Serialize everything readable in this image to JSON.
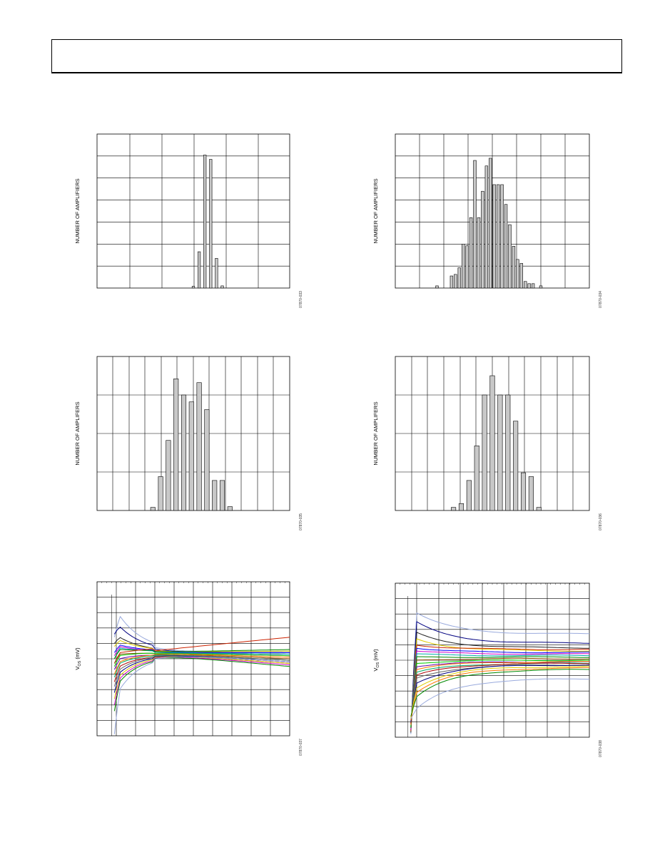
{
  "charts": [
    {
      "id": "hist1",
      "ylabel": "NUMBER OF AMPLIFIERS",
      "code": "07870-033",
      "chart_data": {
        "type": "bar",
        "xlabel": "",
        "ylabel": "NUMBER OF AMPLIFIERS",
        "xlim": [
          0,
          100
        ],
        "ylim": [
          0,
          7
        ],
        "grid": true,
        "bins": [
          {
            "x": 50,
            "h": 0.08
          },
          {
            "x": 53,
            "h": 1.65
          },
          {
            "x": 56,
            "h": 6.05
          },
          {
            "x": 59,
            "h": 5.85
          },
          {
            "x": 62,
            "h": 1.35
          },
          {
            "x": 65,
            "h": 0.1
          }
        ]
      }
    },
    {
      "id": "hist2",
      "ylabel": "NUMBER OF AMPLIFIERS",
      "code": "07870-034",
      "chart_data": {
        "type": "bar",
        "xlabel": "",
        "ylabel": "NUMBER OF AMPLIFIERS",
        "xlim": [
          0,
          100
        ],
        "ylim": [
          0,
          7
        ],
        "grid": true,
        "bins": [
          {
            "x": 21.5,
            "h": 0.1
          },
          {
            "x": 29,
            "h": 0.55
          },
          {
            "x": 31,
            "h": 0.62
          },
          {
            "x": 33,
            "h": 0.92
          },
          {
            "x": 35,
            "h": 2.0
          },
          {
            "x": 37,
            "h": 1.92
          },
          {
            "x": 39,
            "h": 3.2
          },
          {
            "x": 41,
            "h": 5.8
          },
          {
            "x": 43,
            "h": 3.2
          },
          {
            "x": 45,
            "h": 4.4
          },
          {
            "x": 47,
            "h": 5.55
          },
          {
            "x": 49,
            "h": 5.9
          },
          {
            "x": 51,
            "h": 4.7
          },
          {
            "x": 53,
            "h": 4.7
          },
          {
            "x": 55,
            "h": 4.7
          },
          {
            "x": 57,
            "h": 3.8
          },
          {
            "x": 59,
            "h": 2.88
          },
          {
            "x": 61,
            "h": 1.9
          },
          {
            "x": 63,
            "h": 1.3
          },
          {
            "x": 65,
            "h": 1.12
          },
          {
            "x": 67,
            "h": 0.3
          },
          {
            "x": 69,
            "h": 0.2
          },
          {
            "x": 71,
            "h": 0.2
          },
          {
            "x": 75,
            "h": 0.1
          }
        ]
      }
    },
    {
      "id": "hist3",
      "ylabel": "NUMBER OF AMPLIFERS",
      "code": "07870-035",
      "chart_data": {
        "type": "bar",
        "xlabel": "",
        "ylabel": "NUMBER OF AMPLIFERS",
        "xlim": [
          0,
          100
        ],
        "ylim": [
          0,
          4
        ],
        "grid": true,
        "bins": [
          {
            "x": 29,
            "h": 0.08
          },
          {
            "x": 33,
            "h": 0.88
          },
          {
            "x": 37,
            "h": 1.82
          },
          {
            "x": 41,
            "h": 3.42
          },
          {
            "x": 45,
            "h": 3.0
          },
          {
            "x": 49,
            "h": 2.82
          },
          {
            "x": 53,
            "h": 3.32
          },
          {
            "x": 57,
            "h": 2.62
          },
          {
            "x": 61,
            "h": 0.78
          },
          {
            "x": 65,
            "h": 0.78
          },
          {
            "x": 69,
            "h": 0.1
          }
        ]
      }
    },
    {
      "id": "hist4",
      "ylabel": "NUMBER OF AMPLIFERS",
      "code": "07870-036",
      "chart_data": {
        "type": "bar",
        "xlabel": "",
        "ylabel": "NUMBER OF AMPLIFERS",
        "xlim": [
          0,
          100
        ],
        "ylim": [
          0,
          4
        ],
        "grid": true,
        "bins": [
          {
            "x": 30,
            "h": 0.08
          },
          {
            "x": 34,
            "h": 0.18
          },
          {
            "x": 38,
            "h": 0.78
          },
          {
            "x": 42,
            "h": 1.68
          },
          {
            "x": 46,
            "h": 3.0
          },
          {
            "x": 50,
            "h": 3.5
          },
          {
            "x": 54,
            "h": 3.0
          },
          {
            "x": 58,
            "h": 3.0
          },
          {
            "x": 62,
            "h": 2.32
          },
          {
            "x": 66,
            "h": 0.98
          },
          {
            "x": 70,
            "h": 0.88
          },
          {
            "x": 74,
            "h": 0.08
          }
        ]
      }
    },
    {
      "id": "line1",
      "ylabel": "V",
      "ylabel_sub": "OS",
      "ylabel_unit": " (mV)",
      "code": "07870-037",
      "chart_data": {
        "type": "line",
        "xlabel": "",
        "ylabel": "VOS (mV)",
        "xlim": [
          0,
          100
        ],
        "ylim": [
          -5,
          5
        ],
        "grid": true,
        "x_start": 9,
        "settle": 61,
        "palette": [
          "#99aadd",
          "#000080",
          "#cc2200",
          "#008800",
          "#00aaaa",
          "#cc00cc",
          "#ddcc00",
          "#222222",
          "#ff7700",
          "#00cc00",
          "#6600aa",
          "#0000ff",
          "#884400",
          "#aa0000",
          "#666666",
          "#00aa66"
        ],
        "series": [
          {
            "c": "#99aadd",
            "start": 1.4,
            "peak": 2.8,
            "end": 0.5
          },
          {
            "c": "#000080",
            "start": 1.6,
            "peak": 2.1,
            "end": 0.4
          },
          {
            "c": "#222222",
            "start": 1.0,
            "peak": 1.4,
            "end": 0.3
          },
          {
            "c": "#ddcc00",
            "start": 0.8,
            "peak": 1.2,
            "end": 0.5
          },
          {
            "c": "#0000ff",
            "start": 0.4,
            "peak": 0.9,
            "end": 0.4
          },
          {
            "c": "#cc00cc",
            "start": 0.2,
            "peak": 0.8,
            "end": 0.2
          },
          {
            "c": "#00aaaa",
            "start": 0.0,
            "peak": 0.7,
            "end": 0.3
          },
          {
            "c": "#008800",
            "start": 0.0,
            "peak": 0.6,
            "end": 0.6
          },
          {
            "c": "#cc2200",
            "start": -0.3,
            "peak": 0.4,
            "end": 1.4
          },
          {
            "c": "#884400",
            "start": -0.3,
            "peak": 0.3,
            "end": 0.0
          },
          {
            "c": "#00cc00",
            "start": -0.5,
            "peak": 0.2,
            "end": 0.2
          },
          {
            "c": "#6600aa",
            "start": -0.7,
            "peak": 0.0,
            "end": -0.2
          },
          {
            "c": "#ff7700",
            "start": -1.0,
            "peak": -0.2,
            "end": 0.1
          },
          {
            "c": "#00aa66",
            "start": -1.2,
            "peak": -0.3,
            "end": -0.1
          },
          {
            "c": "#aa0000",
            "start": -1.5,
            "peak": -0.5,
            "end": -0.3
          },
          {
            "c": "#666666",
            "start": -1.8,
            "peak": -0.7,
            "end": -0.1
          },
          {
            "c": "#000080",
            "start": -2.2,
            "peak": -0.9,
            "end": -0.2
          },
          {
            "c": "#ddcc00",
            "start": -2.6,
            "peak": -1.1,
            "end": -0.3
          },
          {
            "c": "#cc00cc",
            "start": -3.0,
            "peak": -1.3,
            "end": -0.4
          },
          {
            "c": "#008800",
            "start": -3.4,
            "peak": -1.5,
            "end": -0.5
          },
          {
            "c": "#99aadd",
            "start": -4.9,
            "peak": -2.0,
            "end": -0.2
          }
        ]
      }
    },
    {
      "id": "line2",
      "ylabel": "V",
      "ylabel_sub": "OS",
      "ylabel_unit": " (mV)",
      "code": "07870-038",
      "chart_data": {
        "type": "line",
        "xlabel": "",
        "ylabel": "VOS (mV)",
        "xlim": [
          0,
          100
        ],
        "ylim": [
          -5,
          5
        ],
        "grid": true,
        "x_start": 8,
        "settle": 60,
        "palette": [],
        "series": [
          {
            "c": "#99aadd",
            "start": 0.0,
            "peak": 3.1,
            "end": 1.7
          },
          {
            "c": "#000080",
            "start": 0.0,
            "peak": 2.5,
            "end": 1.1
          },
          {
            "c": "#222222",
            "start": 0.0,
            "peak": 1.8,
            "end": 0.8
          },
          {
            "c": "#ddcc00",
            "start": 0.0,
            "peak": 1.4,
            "end": 0.6
          },
          {
            "c": "#cc2200",
            "start": 0.0,
            "peak": 1.0,
            "end": 0.7
          },
          {
            "c": "#0000ff",
            "start": 0.0,
            "peak": 0.8,
            "end": 0.5
          },
          {
            "c": "#cc00cc",
            "start": 0.0,
            "peak": 0.6,
            "end": 0.4
          },
          {
            "c": "#00aaaa",
            "start": 0.0,
            "peak": 0.4,
            "end": 0.3
          },
          {
            "c": "#008800",
            "start": 0.0,
            "peak": 0.2,
            "end": 0.2
          },
          {
            "c": "#884400",
            "start": 0.0,
            "peak": 0.0,
            "end": 0.1
          },
          {
            "c": "#00cc00",
            "start": 0.0,
            "peak": -0.2,
            "end": 0.0
          },
          {
            "c": "#6600aa",
            "start": 0.0,
            "peak": -0.4,
            "end": -0.1
          },
          {
            "c": "#ff7700",
            "start": 0.0,
            "peak": -0.6,
            "end": -0.1
          },
          {
            "c": "#00aa66",
            "start": 0.0,
            "peak": -0.8,
            "end": -0.2
          },
          {
            "c": "#aa0000",
            "start": 0.0,
            "peak": -1.0,
            "end": -0.2
          },
          {
            "c": "#666666",
            "start": 0.0,
            "peak": -1.2,
            "end": -0.3
          },
          {
            "c": "#000080",
            "start": 0.0,
            "peak": -1.5,
            "end": -0.3
          },
          {
            "c": "#ddcc00",
            "start": 0.0,
            "peak": -1.8,
            "end": -0.4
          },
          {
            "c": "#ff7700",
            "start": 0.0,
            "peak": -2.1,
            "end": -0.5
          },
          {
            "c": "#008800",
            "start": 0.0,
            "peak": -2.4,
            "end": -0.6
          },
          {
            "c": "#99aadd",
            "start": 0.0,
            "peak": -3.2,
            "end": -1.2
          }
        ]
      }
    }
  ]
}
